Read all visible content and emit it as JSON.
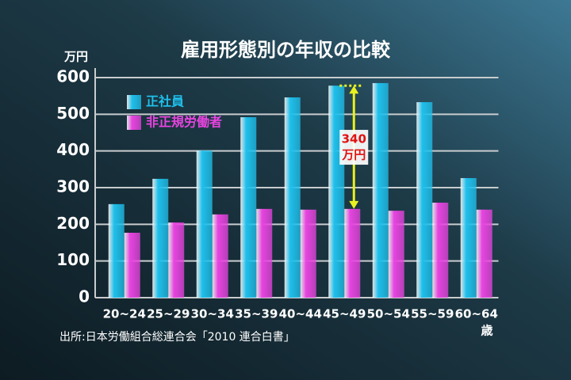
{
  "chart_data": {
    "type": "bar",
    "title": "雇用形態別の年収の比較",
    "y_unit": "万円",
    "x_unit": "歳",
    "categories": [
      "20~24",
      "25~29",
      "30~34",
      "35~39",
      "40~44",
      "45~49",
      "50~54",
      "55~59",
      "60~64"
    ],
    "series": [
      {
        "name": "正社員",
        "color": "#1fc0ec",
        "values": [
          255,
          324,
          401,
          492,
          546,
          578,
          585,
          533,
          326
        ]
      },
      {
        "name": "非正規労働者",
        "color": "#e844e0",
        "values": [
          177,
          205,
          227,
          242,
          240,
          242,
          237,
          259,
          240
        ]
      }
    ],
    "ylim": [
      0,
      600
    ],
    "yticks": [
      0,
      100,
      200,
      300,
      400,
      500,
      600
    ],
    "grid": true,
    "legend": "upper left",
    "annotation": [
      "340",
      "万円"
    ],
    "source": "出所:日本労働組合総連合会「2010 連合白書」"
  }
}
